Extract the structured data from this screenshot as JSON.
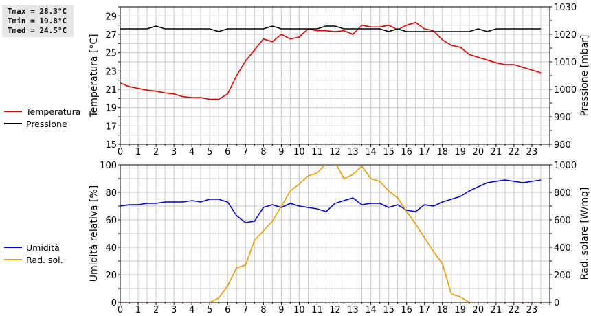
{
  "stats": {
    "tmax": "Tmax = 28.3°C",
    "tmin": "Tmin = 19.8°C",
    "tmed": "Tmed = 24.5°C"
  },
  "legend_top": [
    {
      "label": "Temperatura",
      "color": "#dd0000"
    },
    {
      "label": "Pressione",
      "color": "#000000"
    }
  ],
  "legend_bottom": [
    {
      "label": "Umidità",
      "color": "#0000cc"
    },
    {
      "label": "Rad. sol.",
      "color": "#ee9900"
    }
  ],
  "chart_data": [
    {
      "type": "line",
      "xlabel": "",
      "ylabel": "Temperatura [°C]",
      "y2label": "Pressione [mbar]",
      "xlim": [
        0,
        24
      ],
      "ylim": [
        15,
        30
      ],
      "y2lim": [
        980,
        1030
      ],
      "x_ticks": [
        "0",
        "1",
        "2",
        "3",
        "4",
        "5",
        "6",
        "7",
        "8",
        "9",
        "10",
        "11",
        "12",
        "13",
        "14",
        "15",
        "16",
        "17",
        "18",
        "19",
        "20",
        "21",
        "22",
        "23"
      ],
      "y_ticks": [
        "15",
        "17",
        "19",
        "21",
        "23",
        "25",
        "27",
        "29"
      ],
      "y2_ticks": [
        "980",
        "990",
        "1000",
        "1010",
        "1020",
        "1030"
      ],
      "grid": true,
      "series": [
        {
          "name": "Temperatura",
          "axis": "left",
          "color": "#dd0000",
          "x": [
            0,
            0.5,
            1,
            1.5,
            2,
            2.5,
            3,
            3.5,
            4,
            4.5,
            5,
            5.5,
            6,
            6.5,
            7,
            7.5,
            8,
            8.5,
            9,
            9.5,
            10,
            10.5,
            11,
            11.5,
            12,
            12.5,
            13,
            13.5,
            14,
            14.5,
            15,
            15.5,
            16,
            16.5,
            17,
            17.5,
            18,
            18.5,
            19,
            19.5,
            20,
            20.5,
            21,
            21.5,
            22,
            22.5,
            23,
            23.5
          ],
          "y": [
            21.7,
            21.3,
            21.1,
            20.9,
            20.8,
            20.6,
            20.5,
            20.2,
            20.1,
            20.1,
            19.9,
            19.9,
            20.5,
            22.5,
            24.1,
            25.3,
            26.5,
            26.2,
            27.0,
            26.5,
            26.7,
            27.6,
            27.4,
            27.4,
            27.3,
            27.4,
            27.0,
            28.0,
            27.8,
            27.8,
            28.0,
            27.5,
            28.0,
            28.3,
            27.6,
            27.4,
            26.4,
            25.8,
            25.6,
            24.8,
            24.5,
            24.2,
            23.9,
            23.7,
            23.7,
            23.4,
            23.1,
            22.8
          ]
        },
        {
          "name": "Pressione",
          "axis": "right",
          "color": "#000000",
          "x": [
            0,
            0.5,
            1,
            1.5,
            2,
            2.5,
            3,
            3.5,
            4,
            4.5,
            5,
            5.5,
            6,
            6.5,
            7,
            7.5,
            8,
            8.5,
            9,
            9.5,
            10,
            10.5,
            11,
            11.5,
            12,
            12.5,
            13,
            13.5,
            14,
            14.5,
            15,
            15.5,
            16,
            16.5,
            17,
            17.5,
            18,
            18.5,
            19,
            19.5,
            20,
            20.5,
            21,
            21.5,
            22,
            22.5,
            23,
            23.5
          ],
          "y": [
            1022,
            1022,
            1022,
            1022,
            1023,
            1022,
            1022,
            1022,
            1022,
            1022,
            1022,
            1021,
            1022,
            1022,
            1022,
            1022,
            1022,
            1023,
            1022,
            1022,
            1022,
            1022,
            1022,
            1023,
            1023,
            1022,
            1022,
            1022,
            1022,
            1022,
            1021,
            1022,
            1021,
            1021,
            1021,
            1021,
            1021,
            1021,
            1021,
            1021,
            1022,
            1021,
            1022,
            1022,
            1022,
            1022,
            1022,
            1022
          ]
        }
      ]
    },
    {
      "type": "line",
      "xlabel": "",
      "ylabel": "Umidità relativa [%]",
      "y2label": "Rad. solare [W/mq]",
      "xlim": [
        0,
        24
      ],
      "ylim": [
        0,
        100
      ],
      "y2lim": [
        0,
        1000
      ],
      "x_ticks": [
        "0",
        "1",
        "2",
        "3",
        "4",
        "5",
        "6",
        "7",
        "8",
        "9",
        "10",
        "11",
        "12",
        "13",
        "14",
        "15",
        "16",
        "17",
        "18",
        "19",
        "20",
        "21",
        "22",
        "23"
      ],
      "y_ticks": [
        "0",
        "20",
        "40",
        "60",
        "80",
        "100"
      ],
      "y2_ticks": [
        "0",
        "200",
        "400",
        "600",
        "800",
        "1000"
      ],
      "grid": true,
      "series": [
        {
          "name": "Umidità",
          "axis": "left",
          "color": "#0000cc",
          "x": [
            0,
            0.5,
            1,
            1.5,
            2,
            2.5,
            3,
            3.5,
            4,
            4.5,
            5,
            5.5,
            6,
            6.5,
            7,
            7.5,
            8,
            8.5,
            9,
            9.5,
            10,
            10.5,
            11,
            11.5,
            12,
            12.5,
            13,
            13.5,
            14,
            14.5,
            15,
            15.5,
            16,
            16.5,
            17,
            17.5,
            18,
            18.5,
            19,
            19.5,
            20,
            20.5,
            21,
            21.5,
            22,
            22.5,
            23,
            23.5
          ],
          "y": [
            70,
            71,
            71,
            72,
            72,
            73,
            73,
            73,
            74,
            73,
            75,
            75,
            73,
            63,
            58,
            59,
            69,
            71,
            69,
            72,
            70,
            69,
            68,
            66,
            72,
            74,
            76,
            71,
            72,
            72,
            69,
            71,
            67,
            66,
            71,
            70,
            73,
            75,
            77,
            81,
            84,
            87,
            88,
            89,
            88,
            87,
            88,
            89
          ]
        },
        {
          "name": "Rad. sol.",
          "axis": "right",
          "color": "#ee9900",
          "x": [
            0,
            0.5,
            1,
            1.5,
            2,
            2.5,
            3,
            3.5,
            4,
            4.5,
            5,
            5.5,
            6,
            6.5,
            7,
            7.5,
            8,
            8.5,
            9,
            9.5,
            10,
            10.5,
            11,
            11.5,
            12,
            12.5,
            13,
            13.5,
            14,
            14.5,
            15,
            15.5,
            16,
            16.5,
            17,
            17.5,
            18,
            18.5,
            19,
            19.5,
            20,
            20.5,
            21,
            21.5,
            22,
            22.5,
            23,
            23.5
          ],
          "y": [
            0,
            0,
            0,
            0,
            0,
            0,
            0,
            0,
            0,
            0,
            0,
            30,
            120,
            250,
            270,
            450,
            520,
            590,
            700,
            810,
            860,
            920,
            940,
            1010,
            1020,
            900,
            930,
            990,
            900,
            880,
            810,
            760,
            660,
            570,
            470,
            370,
            280,
            60,
            40,
            0,
            0,
            0,
            0,
            0,
            0,
            0,
            0,
            0
          ]
        }
      ]
    }
  ]
}
